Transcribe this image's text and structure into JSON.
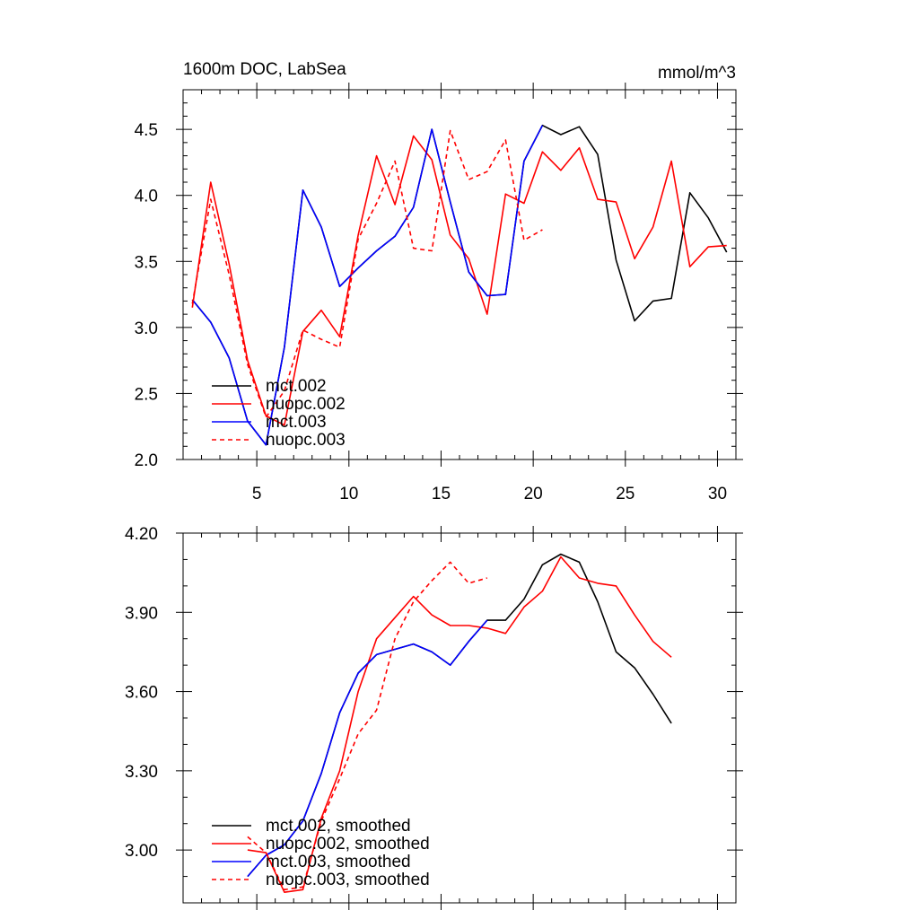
{
  "chart_data": [
    {
      "type": "line",
      "title": "1600m DOC, LabSea",
      "units": "mmol/m^3",
      "xlim": [
        1,
        31
      ],
      "ylim": [
        2.0,
        4.8
      ],
      "xticks": [
        5,
        10,
        15,
        20,
        25,
        30
      ],
      "xtick_labels": [
        "5",
        "10",
        "15",
        "20",
        "25",
        "30"
      ],
      "yticks": [
        2.0,
        2.5,
        3.0,
        3.5,
        4.0,
        4.5
      ],
      "ytick_labels": [
        "2.0",
        "2.5",
        "3.0",
        "3.5",
        "4.0",
        "4.5"
      ],
      "legend": "bottom-left",
      "series": [
        {
          "name": "mct.002",
          "color": "#000000",
          "dash": "solid",
          "x": [
            1.5,
            2.5,
            3.5,
            4.5,
            5.5,
            6.5,
            7.5,
            8.5,
            9.5,
            10.5,
            11.5,
            12.5,
            13.5,
            14.5,
            15.5,
            16.5,
            17.5,
            18.5,
            19.5,
            20.5,
            21.5,
            22.5,
            23.5,
            24.5,
            25.5,
            26.5,
            27.5,
            28.5,
            29.5,
            30.5
          ],
          "y": [
            3.21,
            3.04,
            2.77,
            2.29,
            2.11,
            2.85,
            4.04,
            3.76,
            3.31,
            3.45,
            3.58,
            3.69,
            3.91,
            4.5,
            3.95,
            3.42,
            3.24,
            3.25,
            4.26,
            4.53,
            4.46,
            4.52,
            4.31,
            3.51,
            3.05,
            3.2,
            3.22,
            4.02,
            3.83,
            3.57
          ]
        },
        {
          "name": "nuopc.002",
          "color": "#ff0000",
          "dash": "solid",
          "x": [
            1.5,
            2.5,
            3.5,
            4.5,
            5.5,
            6.5,
            7.5,
            8.5,
            9.5,
            10.5,
            11.5,
            12.5,
            13.5,
            14.5,
            15.5,
            16.5,
            17.5,
            18.5,
            19.5,
            20.5,
            21.5,
            22.5,
            23.5,
            24.5,
            25.5,
            26.5,
            27.5,
            28.5,
            29.5,
            30.5
          ],
          "y": [
            3.15,
            4.1,
            3.48,
            2.75,
            2.33,
            2.26,
            2.97,
            3.13,
            2.93,
            3.7,
            4.3,
            3.93,
            4.45,
            4.27,
            3.7,
            3.52,
            3.1,
            4.01,
            3.94,
            4.33,
            4.19,
            4.36,
            3.97,
            3.95,
            3.52,
            3.76,
            4.26,
            3.46,
            3.61,
            3.62
          ]
        },
        {
          "name": "mct.003",
          "color": "#0000ff",
          "dash": "solid",
          "x": [
            1.5,
            2.5,
            3.5,
            4.5,
            5.5,
            6.5,
            7.5,
            8.5,
            9.5,
            10.5,
            11.5,
            12.5,
            13.5,
            14.5,
            15.5,
            16.5,
            17.5,
            18.5,
            19.5,
            20.5
          ],
          "y": [
            3.21,
            3.04,
            2.77,
            2.29,
            2.11,
            2.85,
            4.04,
            3.76,
            3.31,
            3.45,
            3.58,
            3.69,
            3.91,
            4.5,
            3.95,
            3.42,
            3.24,
            3.25,
            4.26,
            4.53
          ]
        },
        {
          "name": "nuopc.003",
          "color": "#ff0000",
          "dash": "dashed",
          "x": [
            1.5,
            2.5,
            3.5,
            4.5,
            5.5,
            6.5,
            7.5,
            8.5,
            9.5,
            10.5,
            11.5,
            12.5,
            13.5,
            14.5,
            15.5,
            16.5,
            17.5,
            18.5,
            19.5,
            20.5
          ],
          "y": [
            3.18,
            3.97,
            3.4,
            2.72,
            2.32,
            2.52,
            2.98,
            2.91,
            2.85,
            3.67,
            3.94,
            4.26,
            3.6,
            3.58,
            4.49,
            4.12,
            4.18,
            4.42,
            3.66,
            3.74
          ]
        }
      ]
    },
    {
      "type": "line",
      "title": "",
      "xlim": [
        1,
        31
      ],
      "ylim": [
        2.8,
        4.2
      ],
      "xticks": [
        5,
        10,
        15,
        20,
        25,
        30
      ],
      "xtick_labels": [
        "",
        "",
        "",
        "",
        "",
        ""
      ],
      "yticks": [
        3.0,
        3.3,
        3.6,
        3.9,
        4.2
      ],
      "ytick_labels": [
        "3.00",
        "3.30",
        "3.60",
        "3.90",
        "4.20"
      ],
      "legend": "bottom-left",
      "series": [
        {
          "name": "mct.002, smoothed",
          "color": "#000000",
          "dash": "solid",
          "x": [
            4.5,
            5.5,
            6.5,
            7.5,
            8.5,
            9.5,
            10.5,
            11.5,
            12.5,
            13.5,
            14.5,
            15.5,
            16.5,
            17.5,
            18.5,
            19.5,
            20.5,
            21.5,
            22.5,
            23.5,
            24.5,
            25.5,
            26.5,
            27.5
          ],
          "y": [
            2.9,
            2.98,
            3.02,
            3.11,
            3.29,
            3.52,
            3.67,
            3.74,
            3.76,
            3.78,
            3.75,
            3.7,
            3.79,
            3.87,
            3.87,
            3.95,
            4.08,
            4.12,
            4.09,
            3.94,
            3.75,
            3.69,
            3.59,
            3.48
          ]
        },
        {
          "name": "nuopc.002, smoothed",
          "color": "#ff0000",
          "dash": "solid",
          "x": [
            4.5,
            5.5,
            6.5,
            7.5,
            8.5,
            9.5,
            10.5,
            11.5,
            12.5,
            13.5,
            14.5,
            15.5,
            16.5,
            17.5,
            18.5,
            19.5,
            20.5,
            21.5,
            22.5,
            23.5,
            24.5,
            25.5,
            26.5,
            27.5
          ],
          "y": [
            3.0,
            2.99,
            2.84,
            2.85,
            3.12,
            3.3,
            3.6,
            3.8,
            3.88,
            3.96,
            3.89,
            3.85,
            3.85,
            3.84,
            3.82,
            3.92,
            3.98,
            4.11,
            4.03,
            4.01,
            4.0,
            3.89,
            3.79,
            3.73
          ]
        },
        {
          "name": "mct.003, smoothed",
          "color": "#0000ff",
          "dash": "solid",
          "x": [
            4.5,
            5.5,
            6.5,
            7.5,
            8.5,
            9.5,
            10.5,
            11.5,
            12.5,
            13.5,
            14.5,
            15.5,
            16.5,
            17.5
          ],
          "y": [
            2.9,
            2.98,
            3.02,
            3.11,
            3.29,
            3.52,
            3.67,
            3.74,
            3.76,
            3.78,
            3.75,
            3.7,
            3.79,
            3.87
          ]
        },
        {
          "name": "nuopc.003, smoothed",
          "color": "#ff0000",
          "dash": "dashed",
          "x": [
            4.5,
            5.5,
            6.5,
            7.5,
            8.5,
            9.5,
            10.5,
            11.5,
            12.5,
            13.5,
            14.5,
            15.5,
            16.5,
            17.5
          ],
          "y": [
            3.05,
            2.99,
            2.85,
            2.86,
            3.11,
            3.27,
            3.44,
            3.53,
            3.8,
            3.94,
            4.02,
            4.09,
            4.01,
            4.03
          ]
        }
      ]
    }
  ]
}
